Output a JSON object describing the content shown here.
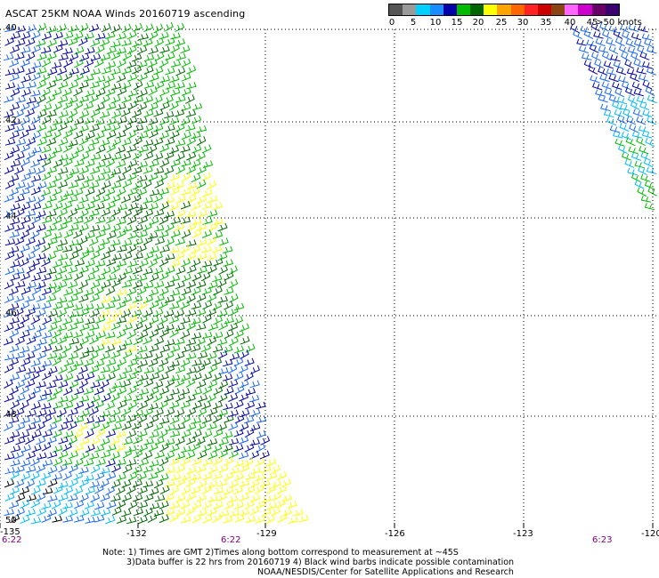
{
  "title": "ASCAT 25KM NOAA Winds 20160719 ascending",
  "legend": {
    "colors": [
      "#555555",
      "#9a9a9a",
      "#00d0ff",
      "#1a8cff",
      "#0000aa",
      "#00bb00",
      "#006600",
      "#ffff00",
      "#ffa500",
      "#ff6600",
      "#ff2222",
      "#cc0000",
      "#8b4513",
      "#ff66ff",
      "#cc00cc",
      "#660066",
      "#3a0070"
    ],
    "labels": [
      "0",
      "5",
      "10",
      "15",
      "20",
      "25",
      "30",
      "35",
      "40",
      "45",
      ">50 knots"
    ]
  },
  "latitude_labels": [
    "40",
    "42",
    "44",
    "46",
    "48",
    "50"
  ],
  "longitude_labels": [
    "-135",
    "-132",
    "-129",
    "-126",
    "-123",
    "-120"
  ],
  "time_labels": [
    "6:22",
    "6:22",
    "6:23"
  ],
  "notes": [
    "Note: 1) Times are GMT 2)Times along bottom correspond to measurement at ~45S",
    "3)Data buffer is 22 hrs from 20160719 4) Black wind barbs indicate possible contamination",
    "NOAA/NESDIS/Center for Satellite Applications and Research"
  ],
  "barb_colors": {
    "navy": "#0000aa",
    "blue": "#1a66ff",
    "cyan": "#00bbff",
    "green": "#00bb00",
    "darkgreen": "#006600",
    "yellow": "#ffff00",
    "black": "#000000"
  }
}
